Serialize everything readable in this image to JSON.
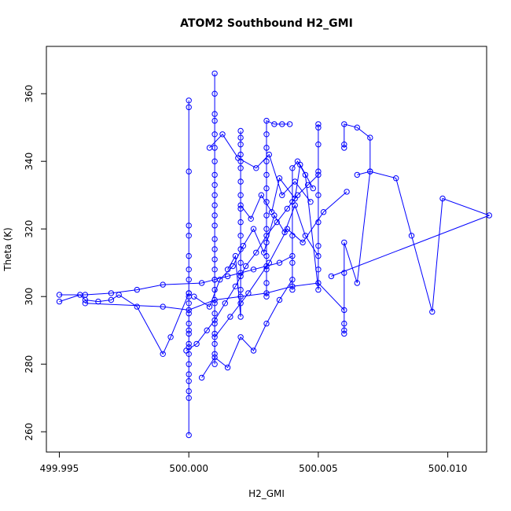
{
  "chart_data": {
    "type": "scatter",
    "title": "ATOM2 Southbound H2_GMI",
    "xlabel": "H2_GMI",
    "ylabel": "Theta (K)",
    "xlim": [
      499.9945,
      500.0115
    ],
    "ylim": [
      254,
      374
    ],
    "x_ticks": [
      499.995,
      500.0,
      500.005,
      500.01
    ],
    "x_tick_labels": [
      "499.995",
      "500.000",
      "500.005",
      "500.010"
    ],
    "y_ticks": [
      260,
      280,
      300,
      320,
      340,
      360
    ],
    "y_tick_labels": [
      "260",
      "280",
      "300",
      "320",
      "340",
      "360"
    ],
    "grid": false,
    "legend": "none",
    "color": "#0000ff",
    "marker": "open-circle",
    "connected": true,
    "series": [
      {
        "x": [
          500.0,
          500.0,
          500.0,
          500.0,
          500.0,
          500.0,
          500.0,
          500.0,
          500.0,
          500.0,
          500.0,
          500.0,
          500.0,
          500.0,
          500.0,
          500.0,
          500.0,
          500.0,
          500.0,
          500.0,
          500.0,
          500.0,
          500.0,
          500.0
        ],
        "y": [
          259,
          270,
          272,
          275,
          277,
          280,
          283,
          286,
          289,
          292,
          295,
          298,
          301,
          305,
          308,
          312,
          318,
          321,
          337,
          356,
          358,
          300,
          290,
          285
        ]
      },
      {
        "x": [
          500.001,
          500.001,
          500.001,
          500.001,
          500.001,
          500.001,
          500.001,
          500.001,
          500.001,
          500.001,
          500.001,
          500.001,
          500.001,
          500.001,
          500.001,
          500.001,
          500.001,
          500.001,
          500.001,
          500.001,
          500.001,
          500.001,
          500.001,
          500.001,
          500.001,
          500.001
        ],
        "y": [
          280,
          283,
          286,
          289,
          292,
          295,
          298,
          302,
          305,
          308,
          311,
          314,
          317,
          321,
          324,
          327,
          330,
          333,
          336,
          340,
          344,
          348,
          352,
          354,
          360,
          366
        ]
      },
      {
        "x": [
          500.0015,
          500.0018,
          500.002,
          500.002,
          500.002,
          500.002,
          500.002,
          500.002,
          500.002,
          500.002,
          500.002,
          500.002,
          500.002,
          500.002,
          500.002,
          500.002,
          500.002,
          500.002,
          500.002
        ],
        "y": [
          308,
          312,
          294,
          298,
          302,
          306,
          310,
          314,
          318,
          322,
          326,
          330,
          334,
          338,
          342,
          345,
          347,
          349,
          340
        ]
      },
      {
        "x": [
          500.003,
          500.003,
          500.003,
          500.003,
          500.003,
          500.003,
          500.003,
          500.003,
          500.003,
          500.003,
          500.003,
          500.003,
          500.003,
          500.003,
          500.0033,
          500.0036,
          500.0039
        ],
        "y": [
          300,
          304,
          308,
          312,
          316,
          320,
          324,
          328,
          332,
          336,
          340,
          344,
          348,
          352,
          351,
          351,
          351
        ]
      },
      {
        "x": [
          500.004,
          500.004,
          500.004,
          500.004,
          500.004,
          500.0042,
          500.0045,
          500.005,
          500.005,
          500.005,
          500.005,
          500.005,
          500.005,
          500.005,
          500.005,
          500.005
        ],
        "y": [
          302,
          310,
          318,
          328,
          338,
          340,
          336,
          302,
          308,
          315,
          322,
          330,
          337,
          345,
          350,
          351
        ]
      },
      {
        "x": [
          500.006,
          500.006,
          500.006,
          500.006,
          500.006,
          500.0065,
          500.007,
          500.007,
          500.0065,
          500.006,
          500.006,
          500.006
        ],
        "y": [
          289,
          290,
          292,
          307,
          316,
          304,
          337,
          347,
          350,
          351,
          345,
          344
        ]
      },
      {
        "x": [
          500.0065,
          500.007,
          500.008,
          500.0086,
          500.0094,
          500.0098,
          500.0116,
          500.0055
        ],
        "y": [
          336,
          337,
          335,
          318,
          295.5,
          329,
          324,
          306
        ]
      },
      {
        "x": [
          499.995,
          499.9958,
          499.996,
          499.9965,
          499.997,
          499.9973,
          499.998,
          499.999,
          499.9993,
          500.0
        ],
        "y": [
          298.5,
          300.5,
          299,
          298.5,
          299,
          300.5,
          297,
          283,
          288,
          301
        ]
      },
      {
        "x": [
          499.995,
          499.996,
          499.997,
          499.998,
          499.999,
          500.0005,
          500.001,
          500.0015,
          500.002,
          500.0025,
          500.003,
          500.0035,
          500.004
        ],
        "y": [
          300.5,
          300.5,
          301,
          302,
          303.5,
          304,
          305,
          306,
          307,
          308,
          309,
          310,
          312
        ]
      },
      {
        "x": [
          499.996,
          499.999,
          500.0,
          500.001,
          500.002,
          500.003,
          500.004,
          500.005,
          500.006
        ],
        "y": [
          298,
          297,
          296,
          299,
          300,
          301,
          303,
          304,
          296
        ]
      },
      {
        "x": [
          499.9999,
          500.0003,
          500.0007,
          500.001,
          500.0014,
          500.0018,
          500.0022,
          500.0026,
          500.003,
          500.0034,
          500.0038,
          500.0042,
          500.0046,
          500.005
        ],
        "y": [
          284,
          286,
          290,
          293,
          298,
          303,
          309,
          313,
          318,
          322,
          326,
          330,
          333,
          336
        ]
      },
      {
        "x": [
          500.0002,
          500.0008,
          500.0012,
          500.0017,
          500.0021,
          500.0025,
          500.0029,
          500.0033,
          500.0037,
          500.0041,
          500.0045,
          500.005
        ],
        "y": [
          300,
          297,
          305,
          309,
          315,
          320,
          313,
          324,
          319,
          327,
          318,
          312
        ]
      },
      {
        "x": [
          500.001,
          500.0016,
          500.0023,
          500.0031,
          500.0038,
          500.0044,
          500.0052,
          500.0061
        ],
        "y": [
          288,
          294,
          301,
          310,
          320,
          316,
          325,
          331
        ]
      },
      {
        "x": [
          500.0008,
          500.0013,
          500.0019,
          500.0026,
          500.0031,
          500.0036,
          500.0041,
          500.0047
        ],
        "y": [
          344,
          348,
          341,
          338,
          342,
          330,
          334,
          328
        ]
      },
      {
        "x": [
          500.002,
          500.0024,
          500.0028,
          500.0032,
          500.0035,
          500.0041,
          500.0043,
          500.0048
        ],
        "y": [
          327,
          323,
          330,
          325,
          335,
          329,
          339,
          332
        ]
      },
      {
        "x": [
          500.0005,
          500.001,
          500.0015,
          500.002,
          500.0025,
          500.003,
          500.0035,
          500.004
        ],
        "y": [
          276,
          282,
          279,
          288,
          284,
          292,
          299,
          305
        ]
      }
    ]
  }
}
